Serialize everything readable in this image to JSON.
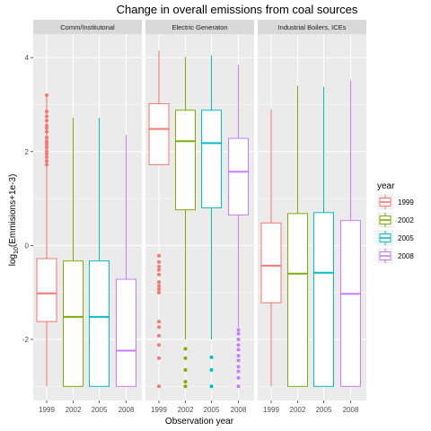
{
  "chart_data": {
    "type": "box",
    "title": "Change in overall emissions from coal sources",
    "xlabel": "Observation year",
    "ylabel": "log10(Emmisions+1e-3)",
    "ylabel_parts": {
      "prefix": "log",
      "subscript": "10",
      "suffix": "(Emmisions+1e-3)"
    },
    "ylim": [
      -3.3,
      4.5
    ],
    "yticks": [
      -2,
      0,
      2,
      4
    ],
    "yticks_label": [
      "-2",
      "0",
      "2",
      "4"
    ],
    "categories": [
      "1999",
      "2002",
      "2005",
      "2008"
    ],
    "colors": {
      "1999": "#F8766D",
      "2002": "#7CAE00",
      "2005": "#00BFC4",
      "2008": "#C77CFF"
    },
    "legend": {
      "title": "year",
      "position": "right",
      "entries": [
        "1999",
        "2002",
        "2005",
        "2008"
      ]
    },
    "panel_background": "#EBEBEB",
    "strip_background": "#D9D9D9",
    "grid": true,
    "panels": [
      {
        "name": "Comm/Institutonal",
        "boxes": [
          {
            "year": "1999",
            "min": -3.0,
            "q1": -1.62,
            "median": -1.02,
            "q3": -0.28,
            "max": 3.2,
            "outliers": [
              1.72,
              1.8,
              1.88,
              1.95,
              2.0,
              2.08,
              2.12,
              2.18,
              2.22,
              2.3,
              2.42,
              2.5,
              2.55,
              2.66,
              2.75,
              2.85,
              3.2
            ]
          },
          {
            "year": "2002",
            "min": -3.0,
            "q1": -3.0,
            "median": -1.52,
            "q3": -0.33,
            "max": 2.72,
            "outliers": []
          },
          {
            "year": "2005",
            "min": -3.0,
            "q1": -3.0,
            "median": -1.52,
            "q3": -0.33,
            "max": 2.72,
            "outliers": []
          },
          {
            "year": "2008",
            "min": -3.0,
            "q1": -3.0,
            "median": -2.24,
            "q3": -0.72,
            "max": 2.35,
            "outliers": []
          }
        ]
      },
      {
        "name": "Electric Generaton",
        "boxes": [
          {
            "year": "1999",
            "min": 1.72,
            "q1": 1.72,
            "median": 2.48,
            "q3": 3.02,
            "max": 4.15,
            "outliers": [
              -3.0,
              -2.4,
              -2.12,
              -1.92,
              -1.74,
              -1.62,
              -1.0,
              -0.93,
              -0.86,
              -0.78,
              -0.62,
              -0.52,
              -0.45,
              -0.35,
              -0.22
            ]
          },
          {
            "year": "2002",
            "min": -2.0,
            "q1": 0.76,
            "median": 2.22,
            "q3": 2.88,
            "max": 4.02,
            "outliers": [
              -3.0,
              -2.9,
              -2.65,
              -2.4,
              -2.2
            ]
          },
          {
            "year": "2005",
            "min": -2.0,
            "q1": 0.8,
            "median": 2.18,
            "q3": 2.88,
            "max": 4.05,
            "outliers": [
              -3.0,
              -2.65,
              -2.38
            ]
          },
          {
            "year": "2008",
            "min": -1.75,
            "q1": 0.65,
            "median": 1.57,
            "q3": 2.28,
            "max": 3.85,
            "outliers": [
              -3.0,
              -2.82,
              -2.68,
              -2.58,
              -2.45,
              -2.35,
              -2.22,
              -2.12,
              -2.0,
              -1.88,
              -1.8
            ]
          }
        ]
      },
      {
        "name": "Industrial Boilers, ICEs",
        "boxes": [
          {
            "year": "1999",
            "min": -3.0,
            "q1": -1.22,
            "median": -0.43,
            "q3": 0.48,
            "max": 2.9,
            "outliers": []
          },
          {
            "year": "2002",
            "min": -3.0,
            "q1": -3.0,
            "median": -0.6,
            "q3": 0.68,
            "max": 3.4,
            "outliers": []
          },
          {
            "year": "2005",
            "min": -3.0,
            "q1": -3.0,
            "median": -0.58,
            "q3": 0.7,
            "max": 3.38,
            "outliers": []
          },
          {
            "year": "2008",
            "min": -3.0,
            "q1": -3.0,
            "median": -1.03,
            "q3": 0.53,
            "max": 3.52,
            "outliers": []
          }
        ]
      }
    ]
  }
}
